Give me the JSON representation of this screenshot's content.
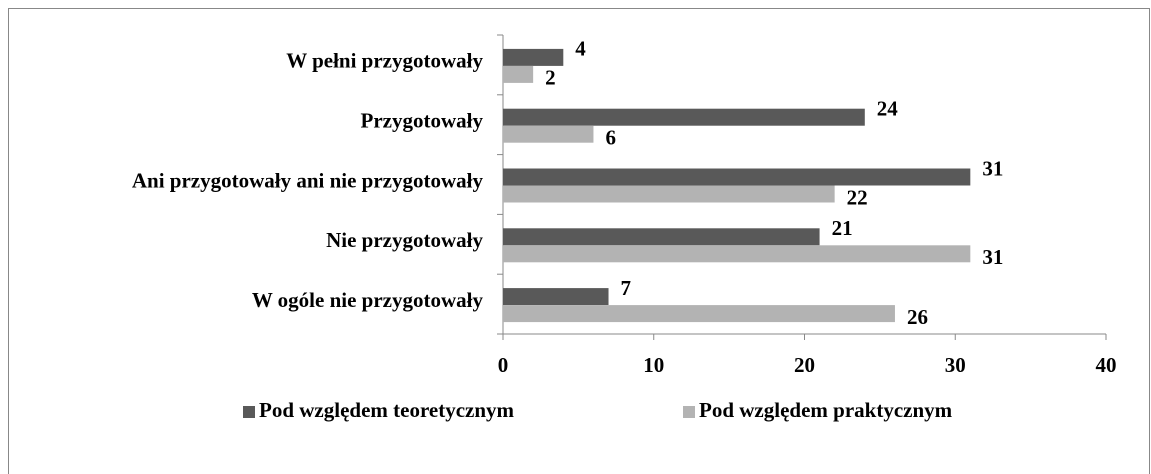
{
  "chart_data": {
    "type": "bar",
    "orientation": "horizontal",
    "categories": [
      "W pełni przygotowały",
      "Przygotowały",
      "Ani przygotowały ani nie przygotowały",
      "Nie przygotowały",
      "W ogóle nie przygotowały"
    ],
    "series": [
      {
        "name": "Pod względem teoretycznym",
        "color": "#595959",
        "values": [
          4,
          24,
          31,
          21,
          7
        ]
      },
      {
        "name": "Pod względem praktycznym",
        "color": "#b3b3b3",
        "values": [
          2,
          6,
          22,
          31,
          26
        ]
      }
    ],
    "xlim": [
      0,
      40
    ],
    "xticks": [
      0,
      10,
      20,
      30,
      40
    ],
    "grid": false,
    "legend": "bottom"
  }
}
